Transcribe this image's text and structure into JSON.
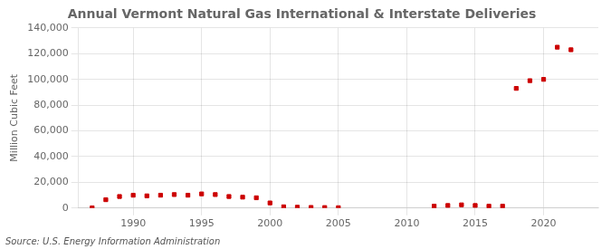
{
  "chart_data": {
    "type": "scatter",
    "title": "Annual Vermont Natural Gas International & Interstate Deliveries",
    "ylabel": "Million Cubic Feet",
    "annotations": [
      "Source: U.S. Energy Information Administration"
    ],
    "x": [
      1987,
      1988,
      1989,
      1990,
      1991,
      1992,
      1993,
      1994,
      1995,
      1996,
      1997,
      1998,
      1999,
      2000,
      2001,
      2002,
      2003,
      2004,
      2005,
      2012,
      2013,
      2014,
      2015,
      2016,
      2017,
      2018,
      2019,
      2020,
      2021,
      2022
    ],
    "values": [
      200,
      6500,
      9000,
      10000,
      9500,
      10000,
      10500,
      10000,
      11000,
      10500,
      9000,
      8500,
      8000,
      4000,
      1000,
      700,
      500,
      400,
      300,
      1500,
      2000,
      2500,
      2000,
      1500,
      1500,
      93000,
      99000,
      100000,
      125000,
      123000
    ],
    "color": "#cc0000",
    "marker": "square",
    "xlim": [
      1986,
      2024
    ],
    "ylim": [
      0,
      140000
    ],
    "xticks": [
      1990,
      1995,
      2000,
      2005,
      2010,
      2015,
      2020
    ],
    "yticks": [
      0,
      {
        "value": 20000,
        "label": "20,000"
      },
      {
        "value": 40000,
        "label": "40,000"
      },
      {
        "value": 60000,
        "label": "60,000"
      },
      {
        "value": 80000,
        "label": "80,000"
      },
      {
        "value": 100000,
        "label": "100,000"
      },
      {
        "value": 120000,
        "label": "120,000"
      },
      {
        "value": 140000,
        "label": "140,000"
      }
    ],
    "grid": true
  }
}
